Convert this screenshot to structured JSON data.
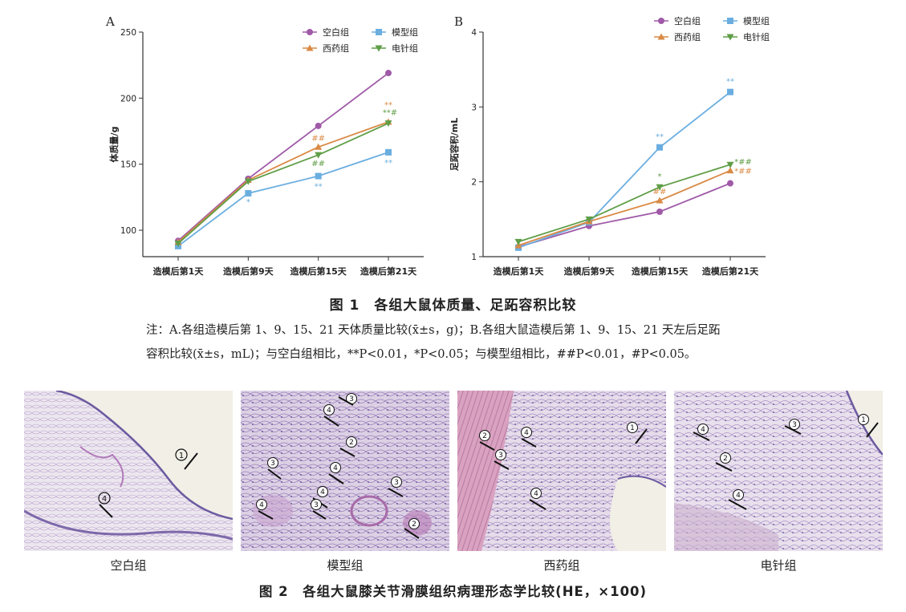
{
  "figure1": {
    "caption": "图 1　各组大鼠体质量、足跖容积比较",
    "note_line1": "注：A.各组造模后第 1、9、15、21 天体质量比较(x̄±s，g)；B.各组大鼠造模后第 1、9、15、21 天左后足跖",
    "note_line2": "容积比较(x̄±s，mL)；与空白组相比，**P<0.01，*P<0.05；与模型组相比，##P<0.01，#P<0.05。"
  },
  "colors": {
    "blank": "#a05aa8",
    "model": "#6aaee0",
    "western": "#d98a45",
    "acupuncture": "#5f9e47"
  },
  "chart_data": [
    {
      "type": "line",
      "panel": "A",
      "ylabel": "体质量/g",
      "xlabel": "",
      "categories": [
        "造模后第1天",
        "造模后第9天",
        "造模后第15天",
        "造模后第21天"
      ],
      "ylim": [
        80,
        250
      ],
      "yticks": [
        "100",
        "150",
        "200",
        "250"
      ],
      "legend_position": "top-right",
      "series": [
        {
          "name": "空白组",
          "key": "blank",
          "marker": "circle",
          "values": [
            92,
            139,
            179,
            219
          ],
          "annotations": [
            "",
            "",
            "",
            ""
          ]
        },
        {
          "name": "模型组",
          "key": "model",
          "marker": "square",
          "values": [
            88,
            128,
            141,
            159
          ],
          "annotations": [
            "",
            "*",
            "**",
            "**"
          ]
        },
        {
          "name": "西药组",
          "key": "western",
          "marker": "triangle-up",
          "values": [
            91,
            138,
            163,
            182
          ],
          "annotations": [
            "",
            "",
            "##",
            "**"
          ]
        },
        {
          "name": "电针组",
          "key": "acupuncture",
          "marker": "triangle-down",
          "values": [
            90,
            137,
            157,
            181
          ],
          "annotations": [
            "",
            "",
            "##",
            "**#"
          ]
        }
      ]
    },
    {
      "type": "line",
      "panel": "B",
      "ylabel": "足跖容积/mL",
      "xlabel": "",
      "categories": [
        "造模后第1天",
        "造模后第9天",
        "造模后第15天",
        "造模后第21天"
      ],
      "ylim": [
        1,
        4
      ],
      "yticks": [
        "1",
        "2",
        "3",
        "4"
      ],
      "legend_position": "top-right",
      "series": [
        {
          "name": "空白组",
          "key": "blank",
          "marker": "circle",
          "values": [
            1.13,
            1.41,
            1.6,
            1.98
          ],
          "annotations": [
            "",
            "",
            "",
            ""
          ]
        },
        {
          "name": "模型组",
          "key": "model",
          "marker": "square",
          "values": [
            1.12,
            1.46,
            2.46,
            3.2
          ],
          "annotations": [
            "",
            "",
            "**",
            "**"
          ]
        },
        {
          "name": "西药组",
          "key": "western",
          "marker": "triangle-up",
          "values": [
            1.15,
            1.47,
            1.75,
            2.15
          ],
          "annotations": [
            "",
            "",
            "##",
            "*##"
          ]
        },
        {
          "name": "电针组",
          "key": "acupuncture",
          "marker": "triangle-down",
          "values": [
            1.2,
            1.5,
            1.93,
            2.23
          ],
          "annotations": [
            "",
            "",
            "*",
            "*##"
          ]
        }
      ]
    }
  ],
  "figure2": {
    "caption": "图 2　各组大鼠膝关节滑膜组织病理形态学比较(HE，×100)",
    "panels": [
      {
        "label": "空白组",
        "markers": [
          "①",
          "④"
        ]
      },
      {
        "label": "模型组",
        "markers": [
          "③",
          "④",
          "②",
          "③",
          "④",
          "③",
          "④",
          "③",
          "④",
          "②"
        ]
      },
      {
        "label": "西药组",
        "markers": [
          "②",
          "④",
          "③",
          "①",
          "④"
        ]
      },
      {
        "label": "电针组",
        "markers": [
          "④",
          "③",
          "①",
          "②",
          "④"
        ]
      }
    ]
  }
}
